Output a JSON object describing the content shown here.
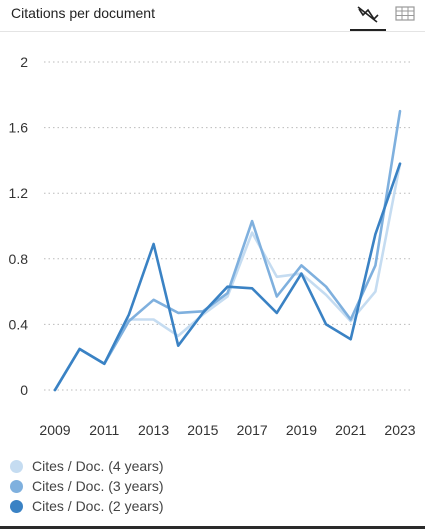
{
  "header": {
    "title": "Citations per document",
    "chart_view_icon": "line-chart-icon",
    "table_view_icon": "table-grid-icon"
  },
  "colors": {
    "series_4y": "#c5dcf1",
    "series_3y": "#7fb0de",
    "series_2y": "#3a82c4",
    "grid": "#bbbbbb"
  },
  "chart_data": {
    "type": "line",
    "x": [
      2009,
      2010,
      2011,
      2012,
      2013,
      2014,
      2015,
      2016,
      2017,
      2018,
      2019,
      2020,
      2021,
      2022,
      2023
    ],
    "xticks": [
      "2009",
      "2011",
      "2013",
      "2015",
      "2017",
      "2019",
      "2021",
      "2023"
    ],
    "yticks": [
      "0",
      "0.4",
      "0.8",
      "1.2",
      "1.6",
      "2"
    ],
    "ylim": [
      0,
      2
    ],
    "grid": true,
    "legend_position": "bottom-left",
    "series": [
      {
        "name": "Cites / Doc. (4 years)",
        "values": [
          0,
          0.25,
          0.16,
          0.43,
          0.43,
          0.33,
          0.46,
          0.57,
          0.96,
          0.69,
          0.71,
          0.58,
          0.42,
          0.6,
          1.38
        ]
      },
      {
        "name": "Cites / Doc. (3 years)",
        "values": [
          0,
          0.25,
          0.16,
          0.42,
          0.55,
          0.47,
          0.48,
          0.59,
          1.03,
          0.57,
          0.76,
          0.63,
          0.43,
          0.76,
          1.7
        ]
      },
      {
        "name": "Cites / Doc. (2 years)",
        "values": [
          0,
          0.25,
          0.16,
          0.46,
          0.89,
          0.27,
          0.47,
          0.63,
          0.62,
          0.47,
          0.71,
          0.4,
          0.31,
          0.95,
          1.38
        ]
      }
    ]
  }
}
